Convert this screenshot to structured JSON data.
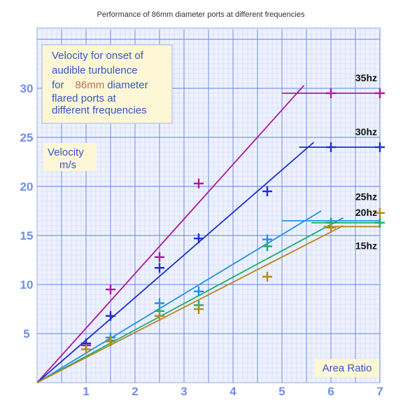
{
  "chart_data": {
    "type": "scatter",
    "title": "Performance of 86mm diameter ports at different frequencies",
    "annotation": {
      "lines": [
        [
          "Velocity for onset of"
        ],
        [
          "audible turbulence"
        ],
        [
          "for",
          "86mm",
          "diameter"
        ],
        [
          "flared ports at"
        ],
        [
          "different frequencies"
        ]
      ]
    },
    "ylabel": [
      "Velocity",
      "m/s"
    ],
    "xlabel": "Area Ratio",
    "xlim": [
      0,
      7
    ],
    "ylim": [
      0,
      35
    ],
    "xticks": [
      1,
      2,
      3,
      4,
      5,
      6,
      7
    ],
    "yticks": [
      5,
      10,
      15,
      20,
      25,
      30
    ],
    "grid": true,
    "series": [
      {
        "name": "35hz",
        "color": "#b0189c",
        "points": [
          [
            1.0,
            3.8
          ],
          [
            1.5,
            9.5
          ],
          [
            2.5,
            12.8
          ],
          [
            3.3,
            20.3
          ],
          [
            6.0,
            29.5
          ],
          [
            7.0,
            29.5
          ]
        ],
        "trend": [
          [
            0,
            0
          ],
          [
            5.45,
            30.3
          ]
        ],
        "plateau": [
          [
            5.0,
            29.5
          ],
          [
            7.0,
            29.5
          ]
        ]
      },
      {
        "name": "30hz",
        "color": "#1a2ed0",
        "points": [
          [
            1.0,
            4.0
          ],
          [
            1.5,
            6.8
          ],
          [
            2.5,
            11.7
          ],
          [
            3.3,
            14.7
          ],
          [
            4.7,
            19.5
          ],
          [
            6.0,
            24.0
          ],
          [
            7.0,
            24.0
          ]
        ],
        "trend": [
          [
            0,
            0
          ],
          [
            5.65,
            24.5
          ]
        ],
        "plateau": [
          [
            5.35,
            24.0
          ],
          [
            7.0,
            24.0
          ]
        ]
      },
      {
        "name": "25hz",
        "color": "#2090f0",
        "points": [
          [
            1.5,
            4.6
          ],
          [
            2.5,
            8.1
          ],
          [
            3.3,
            9.3
          ],
          [
            4.7,
            14.6
          ],
          [
            6.0,
            16.3
          ],
          [
            7.0,
            16.3
          ]
        ],
        "trend": [
          [
            0,
            0
          ],
          [
            5.8,
            17.5
          ]
        ],
        "plateau": [
          [
            5.0,
            16.5
          ],
          [
            7.0,
            16.5
          ]
        ]
      },
      {
        "name": "20hz",
        "color": "#18b070",
        "points": [
          [
            1.5,
            4.3
          ],
          [
            2.5,
            7.3
          ],
          [
            3.3,
            7.9
          ],
          [
            4.7,
            13.9
          ],
          [
            6.0,
            16.3
          ],
          [
            7.0,
            16.3
          ]
        ],
        "trend": [
          [
            0,
            0
          ],
          [
            6.25,
            16.8
          ]
        ],
        "plateau": [
          [
            5.6,
            16.3
          ],
          [
            7.0,
            16.3
          ]
        ]
      },
      {
        "name": "15hz",
        "color": "#b8861a",
        "points": [
          [
            1.0,
            3.4
          ],
          [
            1.5,
            4.2
          ],
          [
            2.5,
            6.8
          ],
          [
            3.3,
            7.5
          ],
          [
            4.7,
            10.8
          ],
          [
            6.0,
            15.8
          ],
          [
            7.0,
            17.3
          ]
        ],
        "trend": [
          [
            0,
            0
          ],
          [
            6.25,
            16.0
          ]
        ],
        "plateau": [
          [
            5.85,
            15.9
          ],
          [
            7.0,
            15.9
          ]
        ]
      }
    ],
    "series_labels": [
      {
        "name": "35hz",
        "at": [
          7.0,
          30.7
        ]
      },
      {
        "name": "30hz",
        "at": [
          7.0,
          25.2
        ]
      },
      {
        "name": "25hz",
        "at": [
          7.0,
          18.6
        ]
      },
      {
        "name": "20hz",
        "at": [
          7.0,
          17.0
        ]
      },
      {
        "name": "15hz",
        "at": [
          7.0,
          13.6
        ]
      }
    ]
  }
}
